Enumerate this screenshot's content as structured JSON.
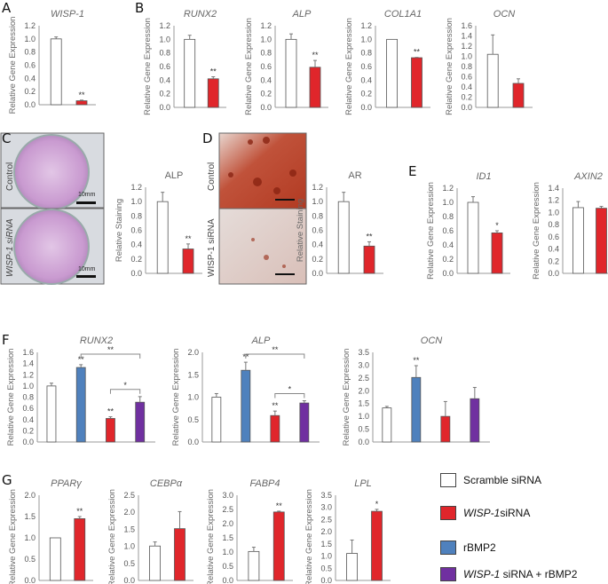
{
  "panel_labels": [
    "A",
    "B",
    "C",
    "D",
    "E",
    "F",
    "G"
  ],
  "colors": {
    "scramble": "#ffffff",
    "wisp1": "#e0262b",
    "rbmp2": "#4f81bd",
    "combo": "#7030a0"
  },
  "legend": [
    {
      "label": "Scramble siRNA",
      "color": "#ffffff"
    },
    {
      "label_italic": "WISP-1",
      "label": " siRNA",
      "color": "#e0262b"
    },
    {
      "label": "rBMP2",
      "color": "#4f81bd"
    },
    {
      "label_italic": "WISP-1",
      "label": " siRNA + rBMP2",
      "color": "#7030a0"
    }
  ],
  "images": {
    "C": {
      "rows": [
        "Control",
        "WISP-1 siRNA"
      ],
      "scale": "10mm"
    },
    "D": {
      "rows": [
        "Control",
        "WISP-1 siRNA"
      ]
    }
  },
  "chart_data": [
    {
      "id": "A-WISP1",
      "type": "bar",
      "title": "WISP-1",
      "italic": true,
      "ylabel": "Relative Gene Expression",
      "ylim": [
        0,
        1.2
      ],
      "ystep": 0.2,
      "values": [
        1.0,
        0.06
      ],
      "errors": [
        0.03,
        0.01
      ],
      "colors": [
        "#ffffff",
        "#e0262b"
      ],
      "sig": [
        "",
        "**"
      ]
    },
    {
      "id": "B-RUNX2",
      "type": "bar",
      "title": "RUNX2",
      "italic": true,
      "ylabel": "Relative Gene Expression",
      "ylim": [
        0,
        1.2
      ],
      "ystep": 0.2,
      "values": [
        1.0,
        0.42
      ],
      "errors": [
        0.06,
        0.03
      ],
      "colors": [
        "#ffffff",
        "#e0262b"
      ],
      "sig": [
        "",
        "**"
      ]
    },
    {
      "id": "B-ALP",
      "type": "bar",
      "title": "ALP",
      "italic": true,
      "ylabel": "Relative Gene Expression",
      "ylim": [
        0,
        1.2
      ],
      "ystep": 0.2,
      "values": [
        1.0,
        0.59
      ],
      "errors": [
        0.08,
        0.1
      ],
      "colors": [
        "#ffffff",
        "#e0262b"
      ],
      "sig": [
        "",
        "**"
      ]
    },
    {
      "id": "B-COL1A1",
      "type": "bar",
      "title": "COL1A1",
      "italic": true,
      "ylabel": "Relative Gene Expression",
      "ylim": [
        0,
        1.2
      ],
      "ystep": 0.2,
      "values": [
        1.0,
        0.73
      ],
      "errors": [
        0.0,
        0.005
      ],
      "colors": [
        "#ffffff",
        "#e0262b"
      ],
      "sig": [
        "",
        "**"
      ]
    },
    {
      "id": "B-OCN",
      "type": "bar",
      "title": "OCN",
      "italic": true,
      "ylabel": "Relative Gene Expression",
      "ylim": [
        0,
        1.6
      ],
      "ystep": 0.2,
      "values": [
        1.04,
        0.47
      ],
      "errors": [
        0.38,
        0.09
      ],
      "colors": [
        "#ffffff",
        "#e0262b"
      ],
      "sig": [
        "",
        ""
      ]
    },
    {
      "id": "C-ALP",
      "type": "bar",
      "title": "ALP",
      "italic": false,
      "ylabel": "Relative Staining",
      "ylim": [
        0,
        1.2
      ],
      "ystep": 0.2,
      "values": [
        1.0,
        0.34
      ],
      "errors": [
        0.13,
        0.07
      ],
      "colors": [
        "#ffffff",
        "#e0262b"
      ],
      "sig": [
        "",
        "**"
      ]
    },
    {
      "id": "D-AR",
      "type": "bar",
      "title": "AR",
      "italic": false,
      "ylabel": "Relative Staining",
      "ylim": [
        0,
        1.2
      ],
      "ystep": 0.2,
      "values": [
        1.0,
        0.38
      ],
      "errors": [
        0.13,
        0.06
      ],
      "colors": [
        "#ffffff",
        "#e0262b"
      ],
      "sig": [
        "",
        "**"
      ]
    },
    {
      "id": "E-ID1",
      "type": "bar",
      "title": "ID1",
      "italic": true,
      "ylabel": "Relative Gene Expression",
      "ylim": [
        0,
        1.2
      ],
      "ystep": 0.2,
      "values": [
        1.0,
        0.57
      ],
      "errors": [
        0.08,
        0.03
      ],
      "colors": [
        "#ffffff",
        "#e0262b"
      ],
      "sig": [
        "",
        "*"
      ]
    },
    {
      "id": "E-AXIN2",
      "type": "bar",
      "title": "AXIN2",
      "italic": true,
      "ylabel": "Relative Gene Expression",
      "ylim": [
        0,
        1.4
      ],
      "ystep": 0.2,
      "values": [
        1.08,
        1.07
      ],
      "errors": [
        0.1,
        0.03
      ],
      "colors": [
        "#ffffff",
        "#e0262b"
      ],
      "sig": [
        "",
        ""
      ]
    },
    {
      "id": "F-RUNX2",
      "type": "bar",
      "title": "RUNX2",
      "italic": true,
      "ylabel": "Relative Gene Expression",
      "ylim": [
        0,
        1.6
      ],
      "ystep": 0.2,
      "values": [
        1.0,
        1.33,
        0.42,
        0.71
      ],
      "errors": [
        0.05,
        0.05,
        0.03,
        0.1
      ],
      "colors": [
        "#ffffff",
        "#4f81bd",
        "#e0262b",
        "#7030a0"
      ],
      "sig": [
        "",
        "**",
        "**",
        ""
      ],
      "brackets": [
        {
          "from": 1,
          "to": 3,
          "label": "**"
        },
        {
          "from": 2,
          "to": 3,
          "label": "*"
        }
      ]
    },
    {
      "id": "F-ALP",
      "type": "bar",
      "title": "ALP",
      "italic": true,
      "ylabel": "Relative Gene Expression",
      "ylim": [
        0,
        2.0
      ],
      "ystep": 0.5,
      "values": [
        1.0,
        1.6,
        0.59,
        0.87
      ],
      "errors": [
        0.08,
        0.18,
        0.1,
        0.05
      ],
      "colors": [
        "#ffffff",
        "#4f81bd",
        "#e0262b",
        "#7030a0"
      ],
      "sig": [
        "",
        "**",
        "**",
        ""
      ],
      "brackets": [
        {
          "from": 1,
          "to": 3,
          "label": "**"
        },
        {
          "from": 2,
          "to": 3,
          "label": "*"
        }
      ]
    },
    {
      "id": "F-OCN",
      "type": "bar",
      "title": "OCN",
      "italic": true,
      "ylabel": "Relative Gene Expression",
      "ylim": [
        0,
        3.5
      ],
      "ystep": 0.5,
      "values": [
        1.33,
        2.52,
        1.0,
        1.69
      ],
      "errors": [
        0.06,
        0.46,
        0.58,
        0.44
      ],
      "colors": [
        "#ffffff",
        "#4f81bd",
        "#e0262b",
        "#7030a0"
      ],
      "sig": [
        "",
        "**",
        "",
        ""
      ]
    },
    {
      "id": "G-PPARG",
      "type": "bar",
      "title": "PPARγ",
      "italic": true,
      "ylabel": "Relative Gene Expression",
      "ylim": [
        0,
        2.0
      ],
      "ystep": 0.5,
      "values": [
        1.0,
        1.45
      ],
      "errors": [
        0.0,
        0.05
      ],
      "colors": [
        "#ffffff",
        "#e0262b"
      ],
      "sig": [
        "",
        "**"
      ]
    },
    {
      "id": "G-CEBPA",
      "type": "bar",
      "title": "CEBPα",
      "italic": true,
      "ylabel": "Relative Gene Expression",
      "ylim": [
        0,
        2.5
      ],
      "ystep": 0.5,
      "values": [
        1.01,
        1.52
      ],
      "errors": [
        0.12,
        0.5
      ],
      "colors": [
        "#ffffff",
        "#e0262b"
      ],
      "sig": [
        "",
        ""
      ]
    },
    {
      "id": "G-FABP4",
      "type": "bar",
      "title": "FABP4",
      "italic": true,
      "ylabel": "Relative Gene Expression",
      "ylim": [
        0,
        3.0
      ],
      "ystep": 0.5,
      "values": [
        1.02,
        2.41
      ],
      "errors": [
        0.15,
        0.03
      ],
      "colors": [
        "#ffffff",
        "#e0262b"
      ],
      "sig": [
        "",
        "**"
      ]
    },
    {
      "id": "G-LPL",
      "type": "bar",
      "title": "LPL",
      "italic": true,
      "ylabel": "Relative Gene Expression",
      "ylim": [
        0,
        3.5
      ],
      "ystep": 0.5,
      "values": [
        1.11,
        2.84
      ],
      "errors": [
        0.55,
        0.08
      ],
      "colors": [
        "#ffffff",
        "#e0262b"
      ],
      "sig": [
        "",
        "*"
      ]
    }
  ]
}
